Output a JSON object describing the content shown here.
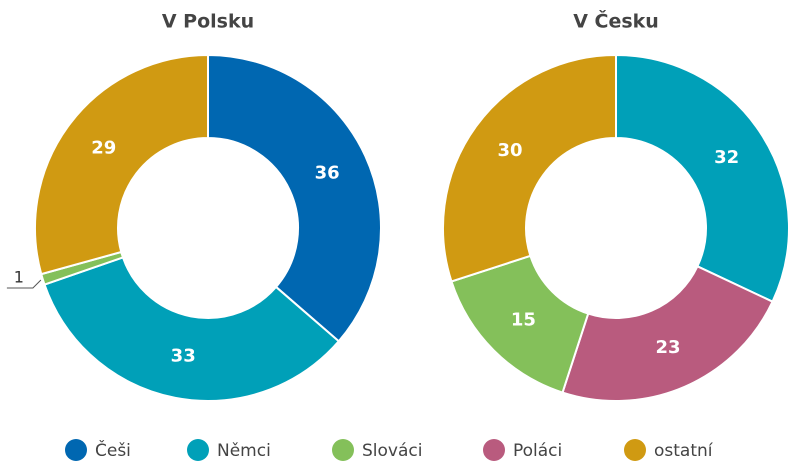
{
  "legend": [
    {
      "name": "Češi",
      "color": "#0067b1"
    },
    {
      "name": "Němci",
      "color": "#00a0b8"
    },
    {
      "name": "Slováci",
      "color": "#84c05a"
    },
    {
      "name": "Poláci",
      "color": "#b95b7e"
    },
    {
      "name": "ostatní",
      "color": "#d09a12"
    }
  ],
  "chart_data": [
    {
      "type": "donut",
      "title": "V Polsku",
      "categories": [
        "Češi",
        "Němci",
        "Slováci",
        "ostatní"
      ],
      "values": [
        36,
        33,
        1,
        29
      ]
    },
    {
      "type": "donut",
      "title": "V Česku",
      "categories": [
        "Němci",
        "Poláci",
        "Slováci",
        "ostatní"
      ],
      "values": [
        32,
        23,
        15,
        30
      ]
    }
  ]
}
